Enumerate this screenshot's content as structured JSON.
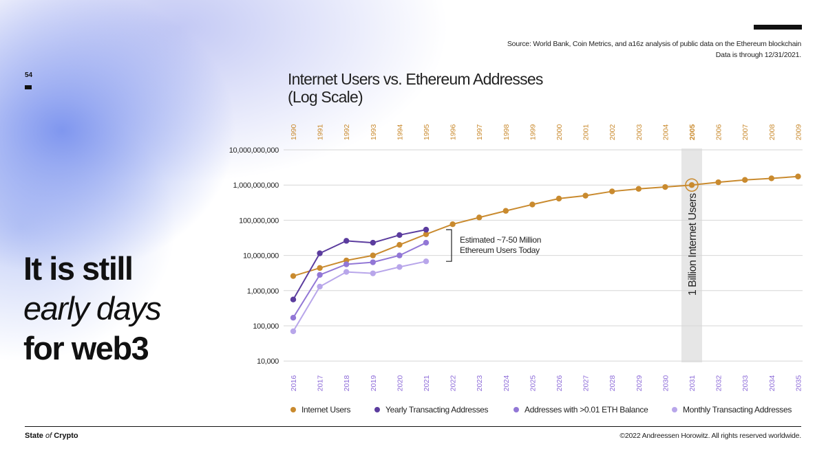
{
  "page": {
    "number": "54",
    "headline_line1": "It is still",
    "headline_line2": "early days",
    "headline_line3": "for web3",
    "source_line1": "Source: World Bank, Coin Metrics, and a16z analysis of public data on the Ethereum blockchain",
    "source_line2": "Data is through 12/31/2021.",
    "brand_bold1": "State",
    "brand_of": " of ",
    "brand_bold2": "Crypto",
    "copyright": "©2022 Andreessen Horowitz. All rights reserved worldwide."
  },
  "colors": {
    "internet": "#C98A2E",
    "yearly": "#5B3C9E",
    "balance": "#9277D6",
    "monthly": "#B8A6EA",
    "top_axis": "#C98A2E",
    "bottom_axis": "#8C6AD8",
    "highlight_band": "#E6E6E6"
  },
  "chart_data": {
    "type": "line",
    "title_line1": "Internet Users vs. Ethereum Addresses",
    "title_line2": "(Log Scale)",
    "y_scale": "log",
    "ylim": [
      10000,
      10000000000
    ],
    "y_ticks": [
      "10,000",
      "100,000",
      "1,000,000",
      "10,000,000",
      "100,000,000",
      "1,000,000,000",
      "10,000,000,000"
    ],
    "grid": true,
    "top_axis_years": [
      "1990",
      "1991",
      "1992",
      "1993",
      "1994",
      "1995",
      "1996",
      "1997",
      "1998",
      "1999",
      "2000",
      "2001",
      "2002",
      "2003",
      "2004",
      "2005",
      "2006",
      "2007",
      "2008",
      "2009"
    ],
    "bottom_axis_years": [
      "2016",
      "2017",
      "2018",
      "2019",
      "2020",
      "2021",
      "2022",
      "2023",
      "2024",
      "2025",
      "2026",
      "2027",
      "2028",
      "2029",
      "2030",
      "2031",
      "2032",
      "2033",
      "2034",
      "2035"
    ],
    "highlight_index": 15,
    "highlight_label": "1 Billion Internet Users",
    "bracket_label_line1": "Estimated ~7-50 Million",
    "bracket_label_line2": "Ethereum Users Today",
    "bracket_range": [
      6800000,
      54000000
    ],
    "legend_placement": "bottom",
    "series": [
      {
        "name": "Internet Users",
        "color_key": "internet",
        "values": [
          2600000,
          4400000,
          7200000,
          10000000,
          20000000,
          40000000,
          77000000,
          120000000,
          185000000,
          280000000,
          413000000,
          500000000,
          660000000,
          780000000,
          880000000,
          1000000000,
          1200000000,
          1400000000,
          1550000000,
          1750000000
        ]
      },
      {
        "name": "Yearly Transacting Addresses",
        "color_key": "yearly",
        "values": [
          560000,
          11500000,
          26000000,
          23000000,
          38000000,
          54000000
        ]
      },
      {
        "name": "Addresses with >0.01 ETH Balance",
        "color_key": "balance",
        "values": [
          170000,
          2800000,
          5600000,
          6400000,
          10000000,
          23000000
        ]
      },
      {
        "name": "Monthly Transacting Addresses",
        "color_key": "monthly",
        "values": [
          70000,
          1300000,
          3400000,
          3100000,
          4700000,
          6800000
        ]
      }
    ]
  }
}
